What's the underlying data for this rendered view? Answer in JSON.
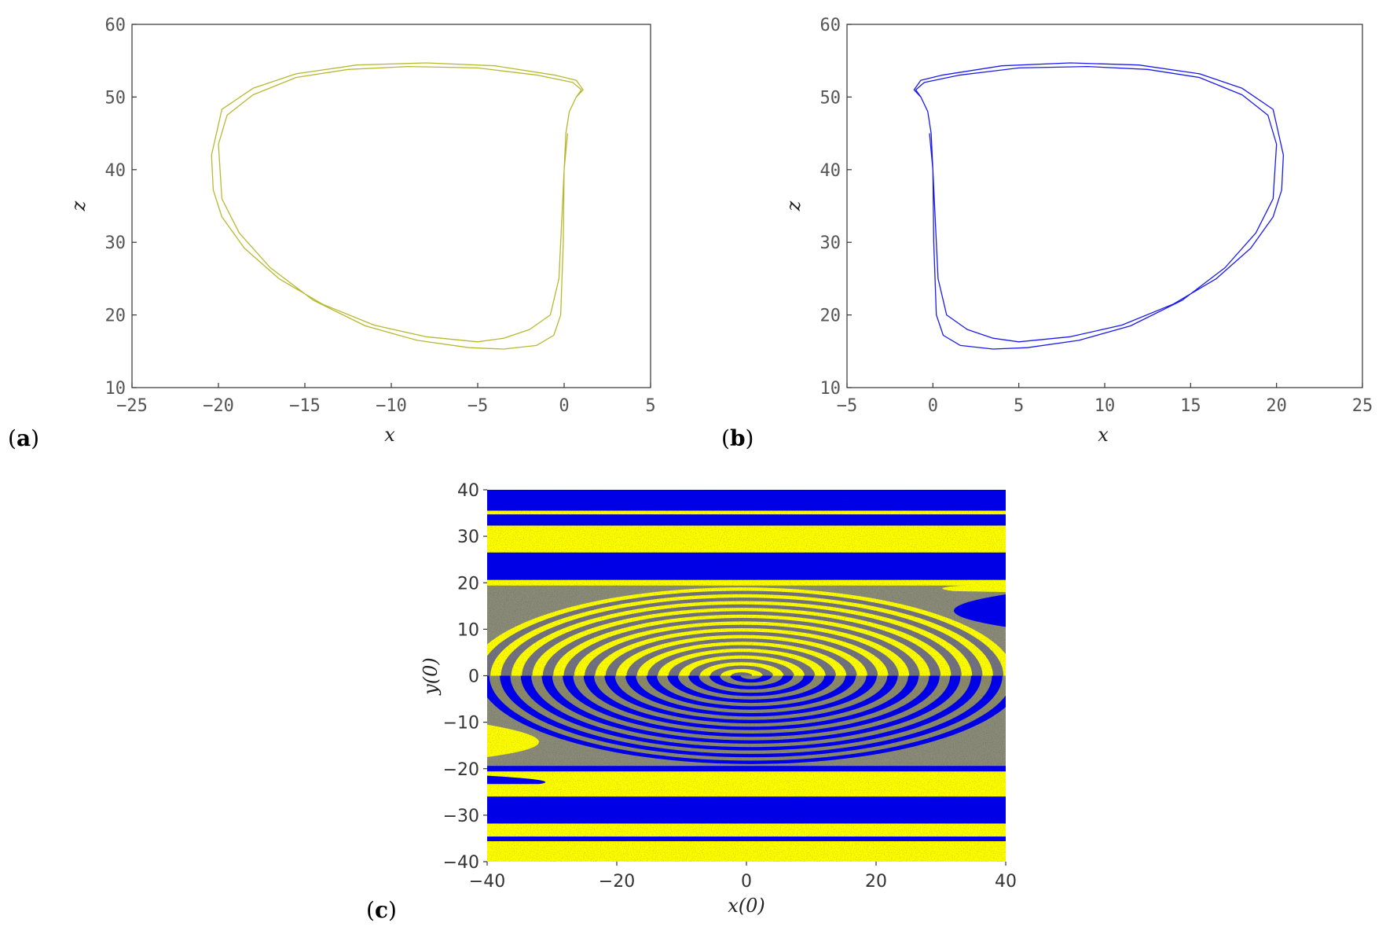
{
  "figure": {
    "panel_labels": [
      {
        "open": "(",
        "letter": "a",
        "close": ")"
      },
      {
        "open": "(",
        "letter": "b",
        "close": ")"
      },
      {
        "open": "(",
        "letter": "c",
        "close": ")"
      }
    ]
  },
  "chart_data": [
    {
      "type": "line",
      "title": "",
      "xlabel": "x",
      "ylabel": "z",
      "xlim": [
        -25,
        5
      ],
      "ylim": [
        10,
        60
      ],
      "xticks": [
        "-25",
        "-20",
        "-15",
        "-10",
        "-5",
        "0",
        "5"
      ],
      "yticks": [
        "10",
        "20",
        "30",
        "40",
        "50",
        "60"
      ],
      "grid": false,
      "series": [
        {
          "color": "#b8b830",
          "x": [
            0.2,
            0.0,
            -0.1,
            -0.2,
            -0.3,
            -0.8,
            -2.0,
            -3.5,
            -5.0,
            -8.0,
            -11.0,
            -14.0,
            -16.5,
            -18.5,
            -19.8,
            -20.3,
            -20.4,
            -19.8,
            -18.0,
            -15.5,
            -12.0,
            -8.0,
            -4.0,
            -0.5,
            0.7,
            1.1,
            0.7,
            0.3,
            0.1,
            0.0,
            -0.05,
            -0.2,
            -0.6,
            -1.6,
            -3.5,
            -5.5,
            -8.5,
            -11.5,
            -14.5,
            -17.0,
            -18.8,
            -19.8,
            -20.0,
            -19.5,
            -18.0,
            -15.5,
            -12.5,
            -9.0,
            -5.0,
            -1.5,
            0.5,
            1.0,
            0.7
          ],
          "y": [
            45.0,
            40.0,
            35.0,
            30.0,
            25.0,
            20.0,
            18.0,
            16.8,
            16.3,
            17.0,
            18.6,
            21.5,
            25.0,
            29.2,
            33.5,
            37.2,
            42.0,
            48.3,
            51.2,
            53.2,
            54.4,
            54.7,
            54.3,
            53.0,
            52.3,
            51.0,
            50.0,
            48.0,
            45.0,
            40.0,
            30.0,
            20.0,
            17.2,
            15.8,
            15.3,
            15.5,
            16.5,
            18.5,
            22.0,
            26.5,
            31.3,
            36.0,
            43.5,
            47.5,
            50.3,
            52.7,
            53.8,
            54.2,
            54.0,
            53.0,
            52.0,
            51.0,
            50.0
          ]
        }
      ]
    },
    {
      "type": "line",
      "title": "",
      "xlabel": "x",
      "ylabel": "z",
      "xlim": [
        -5,
        25
      ],
      "ylim": [
        10,
        60
      ],
      "xticks": [
        "-5",
        "0",
        "5",
        "10",
        "15",
        "20",
        "25"
      ],
      "yticks": [
        "10",
        "20",
        "30",
        "40",
        "50",
        "60"
      ],
      "grid": false,
      "series": [
        {
          "color": "#1a1aee",
          "x": [
            -0.2,
            0.0,
            0.1,
            0.2,
            0.3,
            0.8,
            2.0,
            3.5,
            5.0,
            8.0,
            11.0,
            14.0,
            16.5,
            18.5,
            19.8,
            20.3,
            20.4,
            19.8,
            18.0,
            15.5,
            12.0,
            8.0,
            4.0,
            0.5,
            -0.7,
            -1.1,
            -0.7,
            -0.3,
            -0.1,
            0.0,
            0.05,
            0.2,
            0.6,
            1.6,
            3.5,
            5.5,
            8.5,
            11.5,
            14.5,
            17.0,
            18.8,
            19.8,
            20.0,
            19.5,
            18.0,
            15.5,
            12.5,
            9.0,
            5.0,
            1.5,
            -0.5,
            -1.0,
            -0.7
          ],
          "y": [
            45.0,
            40.0,
            35.0,
            30.0,
            25.0,
            20.0,
            18.0,
            16.8,
            16.3,
            17.0,
            18.6,
            21.5,
            25.0,
            29.2,
            33.5,
            37.2,
            42.0,
            48.3,
            51.2,
            53.2,
            54.4,
            54.7,
            54.3,
            53.0,
            52.3,
            51.0,
            50.0,
            48.0,
            45.0,
            40.0,
            30.0,
            20.0,
            17.2,
            15.8,
            15.3,
            15.5,
            16.5,
            18.5,
            22.0,
            26.5,
            31.3,
            36.0,
            43.5,
            47.5,
            50.3,
            52.7,
            53.8,
            54.2,
            54.0,
            53.0,
            52.0,
            51.0,
            50.0
          ]
        }
      ]
    },
    {
      "type": "heatmap",
      "title": "",
      "xlabel": "x(0)",
      "ylabel": "y(0)",
      "xlim": [
        -40,
        40
      ],
      "ylim": [
        -40,
        40
      ],
      "xticks": [
        "-40",
        "-20",
        "0",
        "20",
        "40"
      ],
      "yticks": [
        "-40",
        "-30",
        "-20",
        "-10",
        "0",
        "10",
        "20",
        "30",
        "40"
      ],
      "colors": {
        "basin_a": "#ffff00",
        "basin_b": "#0000ee"
      },
      "y_bands": [
        {
          "y": [
            40,
            35.5
          ],
          "basin": "b"
        },
        {
          "y": [
            35.5,
            34.7
          ],
          "basin": "a"
        },
        {
          "y": [
            34.7,
            32.3
          ],
          "basin": "b"
        },
        {
          "y": [
            32.3,
            26.5
          ],
          "basin": "a"
        },
        {
          "y": [
            26.5,
            20.6
          ],
          "basin": "b"
        },
        {
          "y": [
            20.6,
            19.4
          ],
          "basin": "a"
        },
        {
          "y": [
            -19.4,
            -20.6
          ],
          "basin": "b"
        },
        {
          "y": [
            -20.6,
            -26.0
          ],
          "basin": "a"
        },
        {
          "y": [
            -26.0,
            -31.8
          ],
          "basin": "b"
        },
        {
          "y": [
            -31.8,
            -34.6
          ],
          "basin": "a"
        },
        {
          "y": [
            -34.6,
            -35.6
          ],
          "basin": "b"
        },
        {
          "y": [
            -35.6,
            -40
          ],
          "basin": "a"
        }
      ],
      "spiral_region": {
        "center": [
          0,
          0
        ],
        "x_radius": 42,
        "y_radius": 19,
        "upper_basin": "a",
        "lower_basin": "b"
      }
    }
  ]
}
